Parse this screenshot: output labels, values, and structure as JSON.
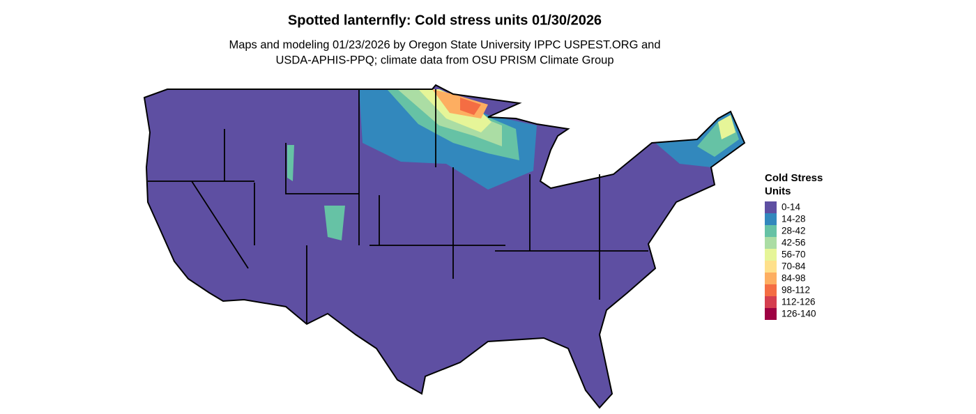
{
  "header": {
    "title": "Spotted lanternfly: Cold stress units 01/30/2026",
    "subtitle": [
      "Maps and modeling 01/23/2026 by Oregon State University IPPC USPEST.ORG and",
      "USDA-APHIS-PPQ; climate data from OSU PRISM Climate Group"
    ]
  },
  "legend": {
    "title": [
      "Cold Stress",
      "Units"
    ],
    "items": [
      {
        "label": "0-14",
        "color": "#5e4fa2"
      },
      {
        "label": "14-28",
        "color": "#3288bd"
      },
      {
        "label": "28-42",
        "color": "#66c2a5"
      },
      {
        "label": "42-56",
        "color": "#abdda4"
      },
      {
        "label": "56-70",
        "color": "#e6f598"
      },
      {
        "label": "70-84",
        "color": "#fee08b"
      },
      {
        "label": "84-98",
        "color": "#fdae61"
      },
      {
        "label": "98-112",
        "color": "#f46d43"
      },
      {
        "label": "112-126",
        "color": "#d53e4f"
      },
      {
        "label": "126-140",
        "color": "#9e0142"
      }
    ]
  }
}
